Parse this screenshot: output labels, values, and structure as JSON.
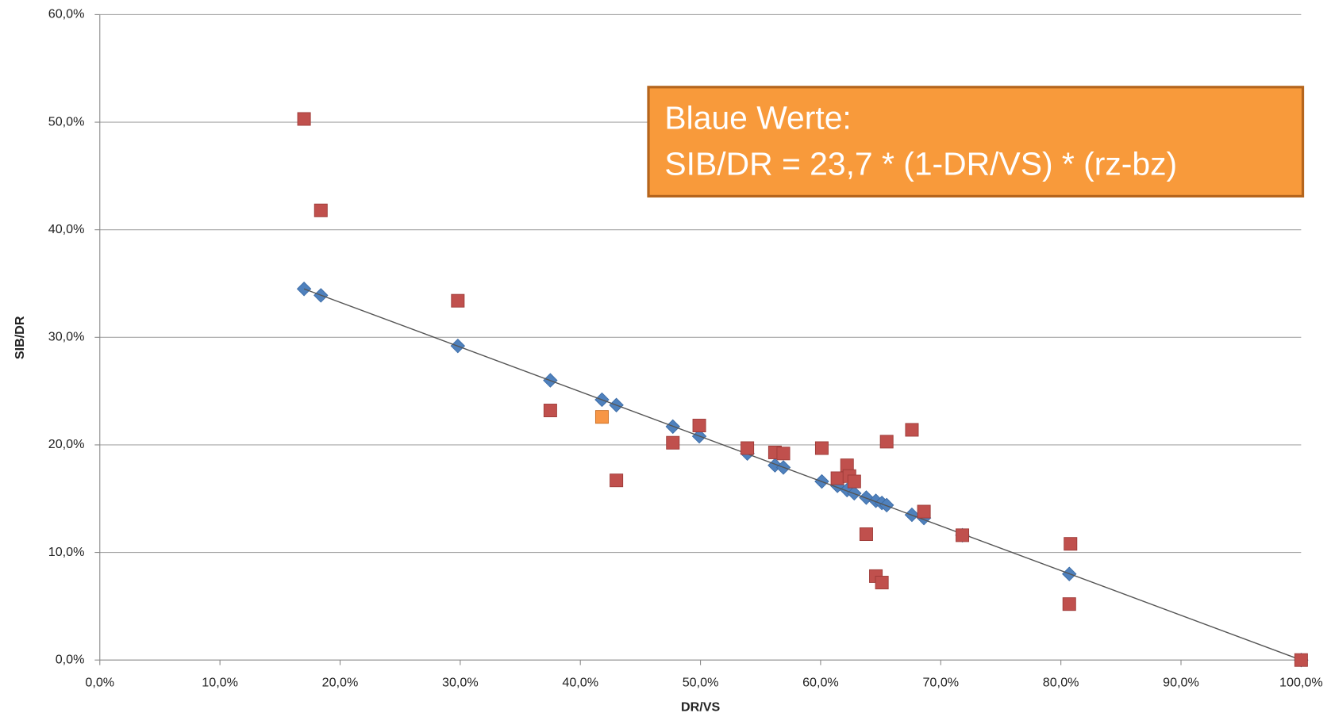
{
  "chart_data": {
    "type": "scatter",
    "x_label": "DR/VS",
    "y_label": "SIB/DR",
    "xlim": [
      0,
      100
    ],
    "ylim": [
      0,
      60
    ],
    "xticks": [
      {
        "value": 0,
        "label": "0,0%"
      },
      {
        "value": 10,
        "label": "10,0%"
      },
      {
        "value": 20,
        "label": "20,0%"
      },
      {
        "value": 30,
        "label": "30,0%"
      },
      {
        "value": 40,
        "label": "40,0%"
      },
      {
        "value": 50,
        "label": "50,0%"
      },
      {
        "value": 60,
        "label": "60,0%"
      },
      {
        "value": 70,
        "label": "70,0%"
      },
      {
        "value": 80,
        "label": "80,0%"
      },
      {
        "value": 90,
        "label": "90,0%"
      },
      {
        "value": 100,
        "label": "100,0%"
      }
    ],
    "yticks": [
      {
        "value": 0,
        "label": "0,0%"
      },
      {
        "value": 10,
        "label": "10,0%"
      },
      {
        "value": 20,
        "label": "20,0%"
      },
      {
        "value": 30,
        "label": "30,0%"
      },
      {
        "value": 40,
        "label": "40,0%"
      },
      {
        "value": 50,
        "label": "50,0%"
      },
      {
        "value": 60,
        "label": "60,0%"
      }
    ],
    "grid": true,
    "series": [
      {
        "color": "#4f81bd",
        "marker": "diamond",
        "x": [
          17.0,
          18.4,
          29.8,
          37.5,
          41.8,
          43.0,
          47.7,
          49.9,
          53.9,
          56.2,
          56.9,
          60.1,
          61.4,
          62.2,
          62.8,
          63.8,
          64.6,
          65.1,
          65.5,
          67.6,
          68.6,
          71.8,
          80.7,
          100
        ],
        "values": [
          34.5,
          33.9,
          29.2,
          26.0,
          24.2,
          23.7,
          21.7,
          20.8,
          19.2,
          18.1,
          17.9,
          16.6,
          16.2,
          15.8,
          15.5,
          15.1,
          14.8,
          14.6,
          14.4,
          13.5,
          13.2,
          11.6,
          8.0,
          0
        ]
      },
      {
        "color": "#c0504d",
        "marker": "square",
        "x": [
          17.0,
          18.4,
          29.8,
          37.5,
          43.0,
          47.7,
          49.9,
          53.9,
          56.2,
          56.9,
          60.1,
          61.4,
          62.2,
          62.4,
          62.8,
          63.8,
          64.6,
          65.1,
          65.5,
          67.6,
          68.6,
          71.8,
          80.7,
          80.8,
          100
        ],
        "values": [
          50.3,
          41.8,
          33.4,
          23.2,
          16.7,
          20.2,
          21.8,
          19.7,
          19.3,
          19.2,
          19.7,
          16.9,
          18.1,
          17.1,
          16.6,
          11.7,
          7.8,
          7.2,
          20.3,
          21.4,
          13.8,
          11.6,
          5.2,
          10.8,
          0
        ]
      },
      {
        "color": "#f79646",
        "marker": "square",
        "x": [
          41.8
        ],
        "values": [
          22.6
        ]
      }
    ],
    "trendline": {
      "color": "#555555",
      "x": [
        17.0,
        100
      ],
      "values": [
        34.5,
        0
      ]
    },
    "annotation": {
      "lines": [
        "Blaue Werte:",
        "SIB/DR = 23,7 * (1-DR/VS) * (rz-bz)"
      ],
      "fill": "#f89a3b",
      "border": "#b5651d"
    }
  }
}
